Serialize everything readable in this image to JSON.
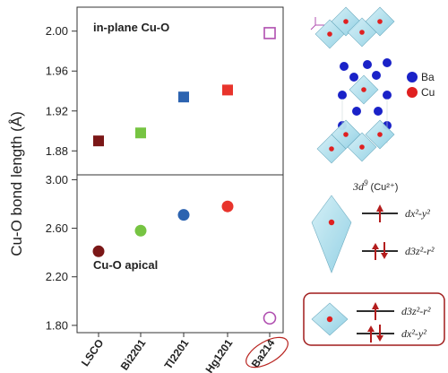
{
  "chart_data": [
    {
      "type": "scatter",
      "title": "in-plane Cu-O",
      "categories": [
        "LSCO",
        "Bi2201",
        "Tl2201",
        "Hg1201",
        "Ba214"
      ],
      "values": [
        1.89,
        1.898,
        1.934,
        1.941,
        1.998
      ],
      "ylabel": "Cu-O bond length (Å)",
      "ylim": [
        1.856,
        2.024
      ],
      "yticks": [
        "1.88",
        "1.92",
        "1.96",
        "2.00"
      ],
      "marker": "square"
    },
    {
      "type": "scatter",
      "title": "Cu-O apical",
      "categories": [
        "LSCO",
        "Bi2201",
        "Tl2201",
        "Hg1201",
        "Ba214"
      ],
      "values": [
        2.41,
        2.58,
        2.71,
        2.78,
        1.86
      ],
      "ylabel": "Cu-O bond length (Å)",
      "ylim": [
        1.74,
        3.04
      ],
      "yticks": [
        "1.80",
        "2.20",
        "2.60",
        "3.00"
      ],
      "marker": "circle"
    }
  ],
  "colors": {
    "LSCO": "#7b1717",
    "Bi2201": "#76c442",
    "Tl2201": "#2c63b0",
    "Hg1201": "#e8342c",
    "Ba214": "#b04fb0",
    "highlight": "#a01c1c",
    "octahedron": "#a7dbea",
    "ba_atom": "#1a22c8",
    "cu_atom": "#e02020"
  },
  "side": {
    "legend_ba": "Ba",
    "legend_cu": "Cu",
    "orbital_title_prefix": "3d",
    "orbital_title_sup": "9",
    "orbital_title_ion": "(Cu²⁺)",
    "top_level_1": "dx²-y²",
    "top_level_2": "d3z²-r²",
    "bottom_level_1": "d3z²-r²",
    "bottom_level_2": "dx²-y²"
  },
  "icons": [
    "crystal-structure",
    "octahedron-icon",
    "spin-up-arrow",
    "spin-pair-arrows",
    "axes-icon"
  ]
}
